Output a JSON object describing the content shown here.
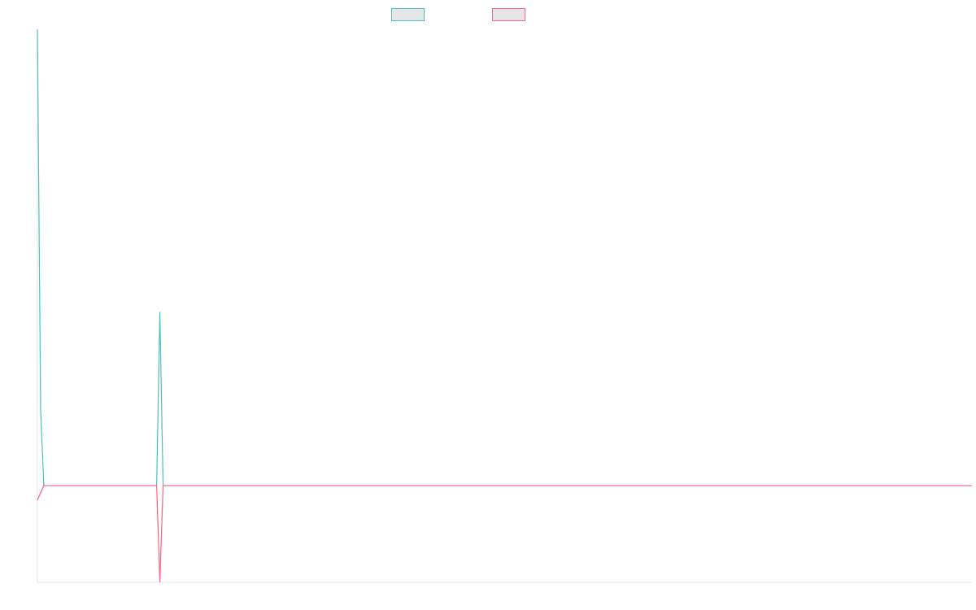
{
  "chart_data": {
    "type": "line",
    "x": [
      0,
      1,
      2,
      37,
      38,
      39,
      290
    ],
    "xlim": [
      0,
      290
    ],
    "ylim": [
      -21.2,
      100
    ],
    "legend": "top",
    "series": [
      {
        "color": "#4bc0c0",
        "values": [
          100,
          16.4,
          0,
          0,
          38.1,
          0,
          0
        ]
      },
      {
        "color": "#ff6384",
        "values": [
          -3.2,
          -1.6,
          0,
          0,
          -21.2,
          0,
          0
        ]
      }
    ]
  }
}
